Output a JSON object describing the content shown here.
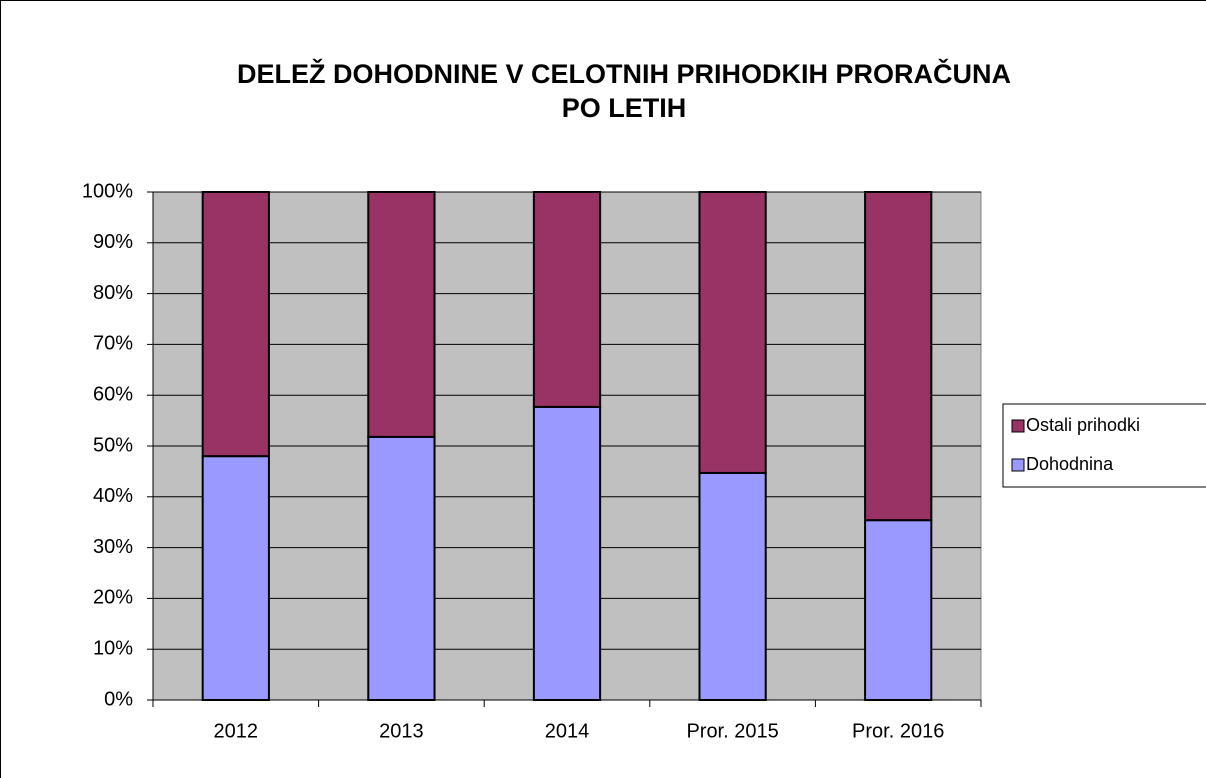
{
  "chart_data": {
    "type": "stacked_bar",
    "title": [
      "DELEŽ DOHODNINE V CELOTNIH PRIHODKIH PRORAČUNA",
      "PO LETIH"
    ],
    "categories": [
      "2012",
      "2013",
      "2014",
      "Pror. 2015",
      "Pror. 2016"
    ],
    "series": [
      {
        "name": "Dohodnina",
        "color": "#9999ff",
        "values": [
          48,
          51.8,
          57.7,
          44.7,
          35.4
        ]
      },
      {
        "name": "Ostali prihodki",
        "color": "#993366",
        "values": [
          52,
          48.2,
          42.3,
          55.3,
          64.6
        ]
      }
    ],
    "ylim": [
      0,
      100
    ],
    "yticks": [
      {
        "value": 0,
        "label": "0%"
      },
      {
        "value": 10,
        "label": "10%"
      },
      {
        "value": 20,
        "label": "20%"
      },
      {
        "value": 30,
        "label": "30%"
      },
      {
        "value": 40,
        "label": "40%"
      },
      {
        "value": 50,
        "label": "50%"
      },
      {
        "value": 60,
        "label": "60%"
      },
      {
        "value": 70,
        "label": "70%"
      },
      {
        "value": 80,
        "label": "80%"
      },
      {
        "value": 90,
        "label": "90%"
      },
      {
        "value": 100,
        "label": "100%"
      }
    ],
    "grid": true,
    "legend": "right",
    "plot_background": "#c0c0c0"
  }
}
